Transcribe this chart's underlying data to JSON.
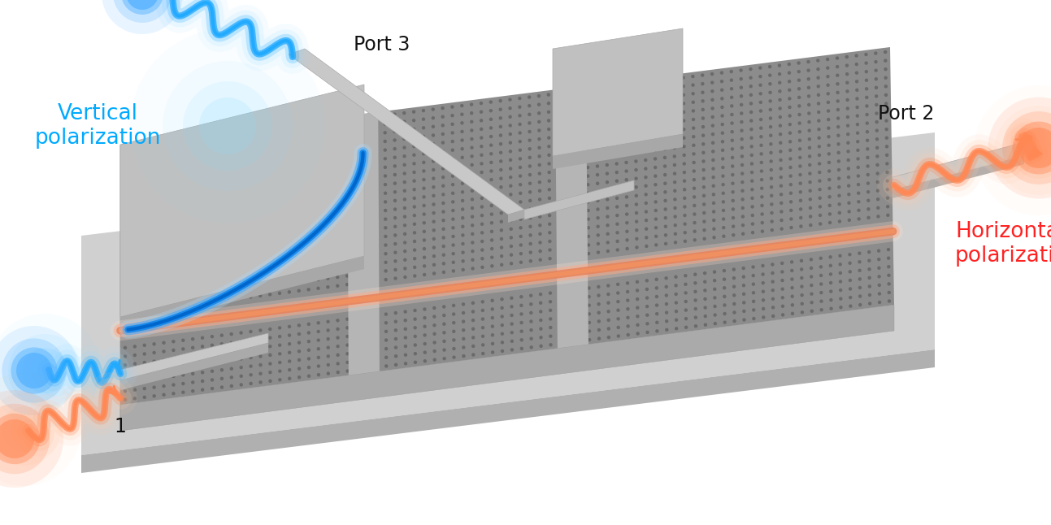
{
  "labels": {
    "port1": "1",
    "port2": "Port 2",
    "port3": "Port 3",
    "vertical_pol": "Vertical\npolarization",
    "horizontal_pol": "Horizontal\npolarization",
    "vertical_color": "#00aaff",
    "horizontal_color": "#ff2222",
    "port_color": "#111111"
  },
  "colors": {
    "pc_top": "#8c8c8c",
    "pc_dots": "#6a6a6a",
    "slab_top_light": "#c8c8c8",
    "slab_top_dark": "#a0a0a0",
    "slab_front": "#aaaaaa",
    "slab_left": "#b8b8b8",
    "port_stub": "#c5c5c5",
    "port_stub_side": "#a8a8a8",
    "bottom_slab_top": "#d0d0d0",
    "bottom_slab_front": "#b0b0b0",
    "bottom_slab_left": "#c0c0c0",
    "gap_region": "#b5b5b5",
    "square_pad": "#c0c0c0"
  }
}
